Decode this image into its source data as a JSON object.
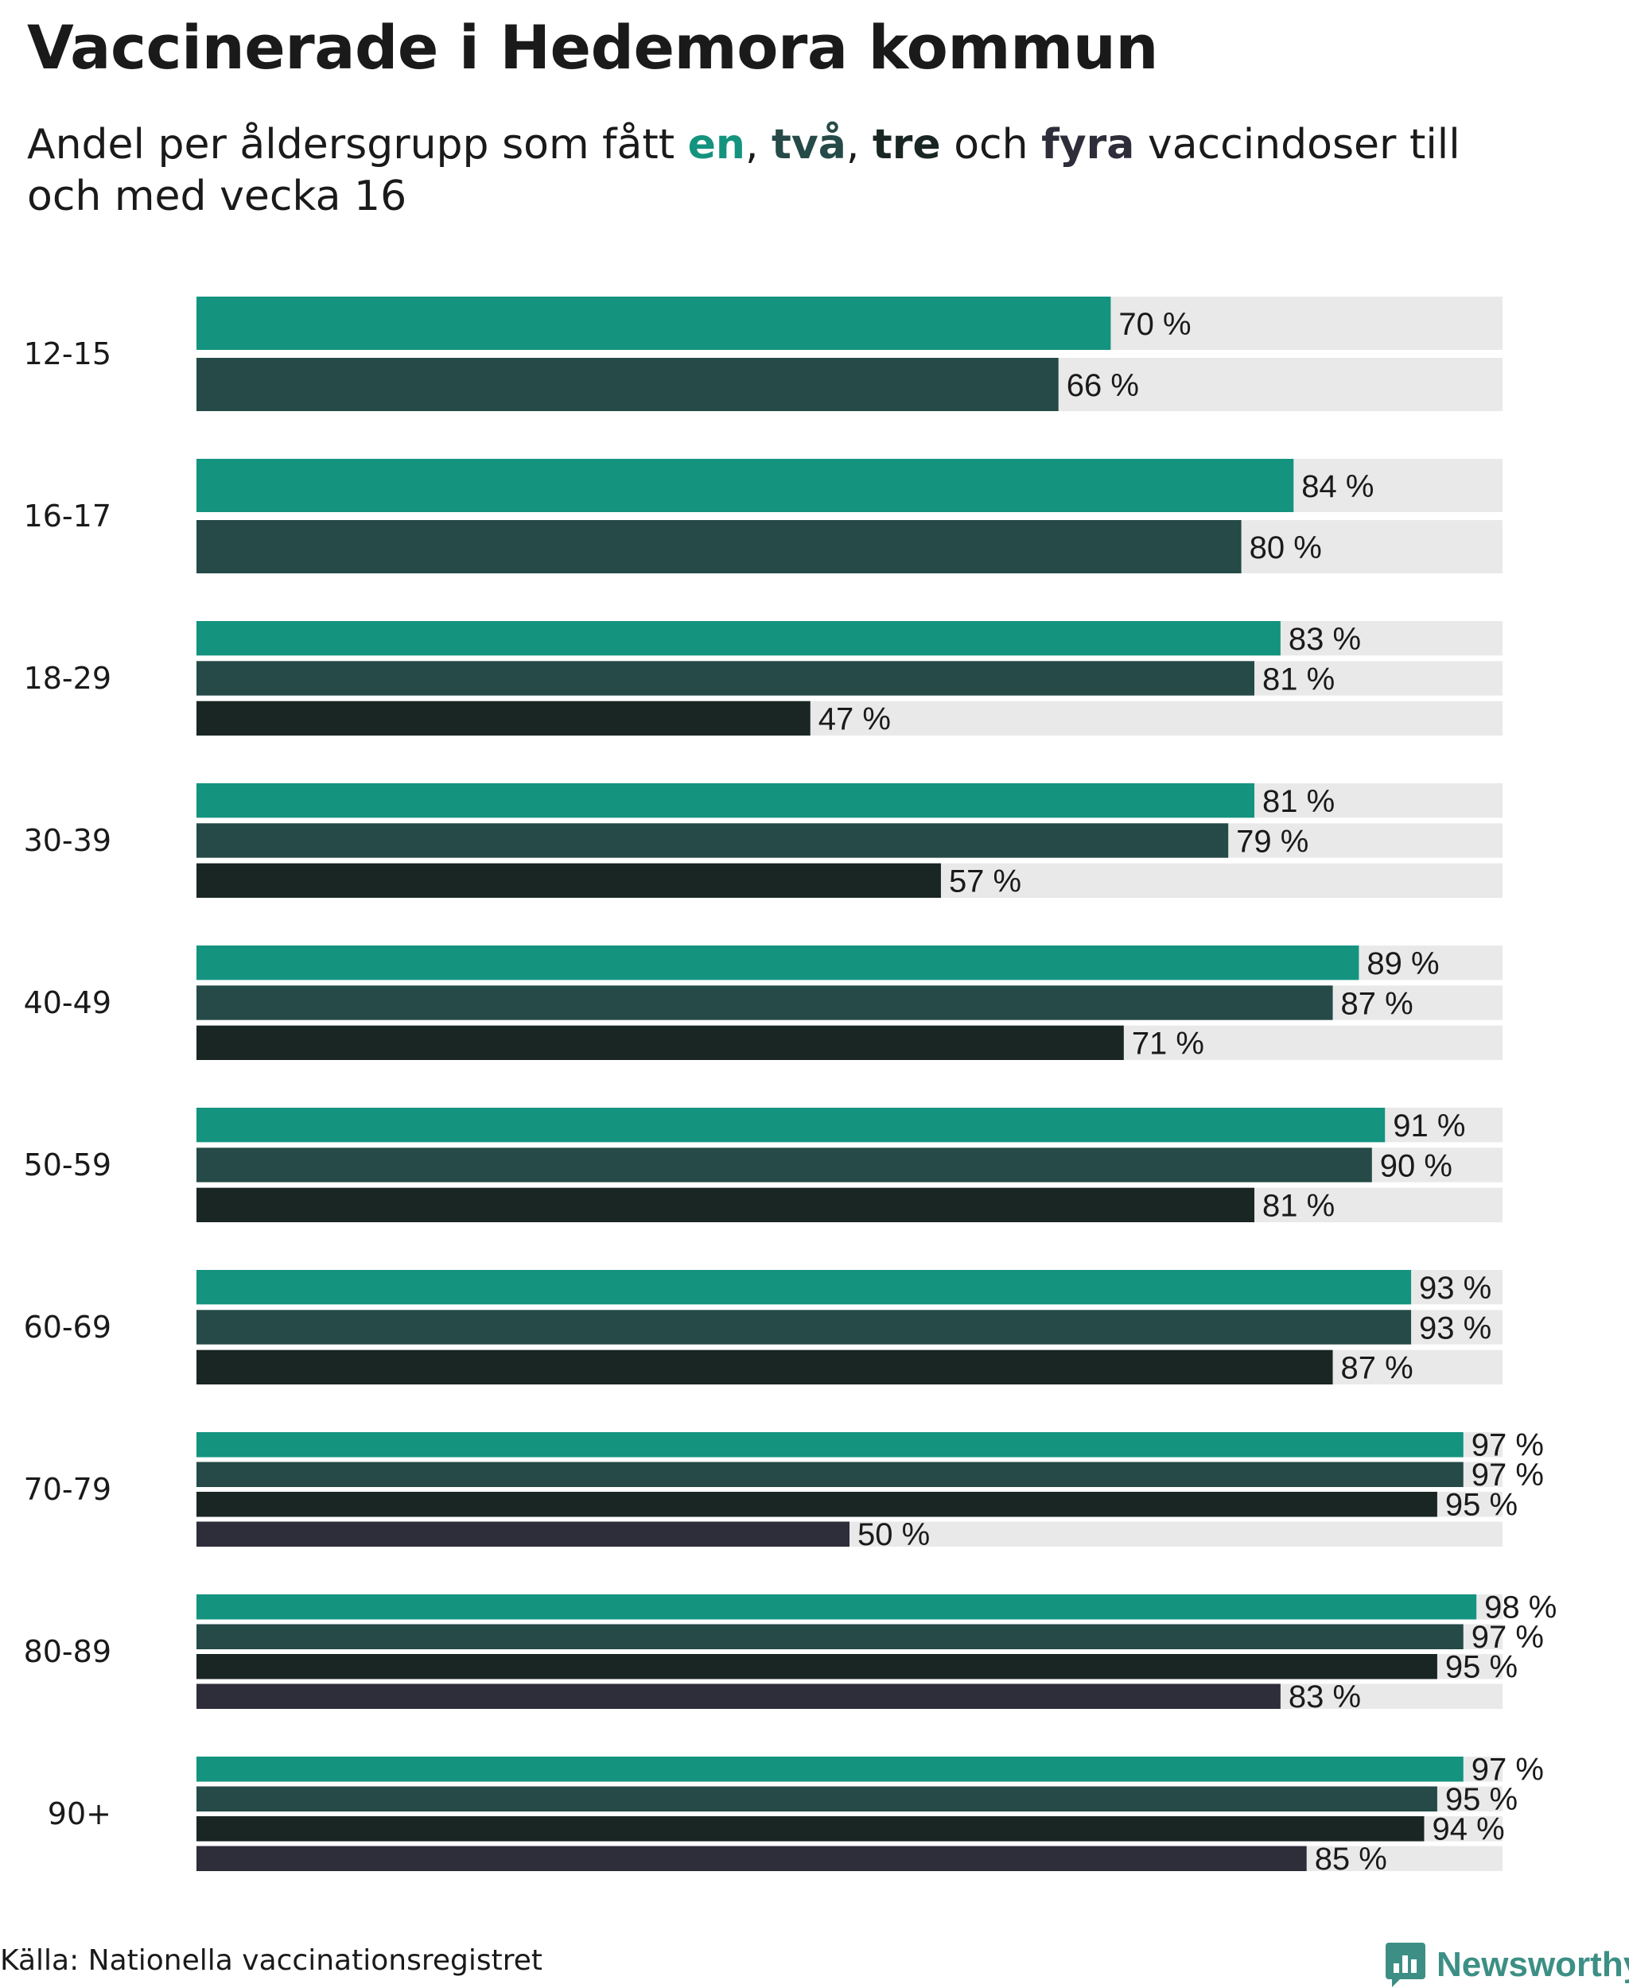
{
  "title": "Vaccinerade i Hedemora kommun",
  "subtitle": {
    "part1": "Andel per åldersgrupp som fått ",
    "w1": "en",
    "sep1": ", ",
    "w2": "två",
    "sep2": ", ",
    "w3": "tre",
    "mid": " och ",
    "w4": "fyra",
    "part2": " vaccindoser till och med vecka 16"
  },
  "colors": {
    "dose1": "#14937f",
    "dose2": "#254a47",
    "dose3": "#192624",
    "dose4": "#2e2d3a",
    "track": "#e9e9e9"
  },
  "chart_data": {
    "type": "bar",
    "orientation": "horizontal",
    "categories": [
      "12-15",
      "16-17",
      "18-29",
      "30-39",
      "40-49",
      "50-59",
      "60-69",
      "70-79",
      "80-89",
      "90+"
    ],
    "series": [
      {
        "name": "en",
        "values": [
          70,
          84,
          83,
          81,
          89,
          91,
          93,
          97,
          98,
          97
        ]
      },
      {
        "name": "två",
        "values": [
          66,
          80,
          81,
          79,
          87,
          90,
          93,
          97,
          97,
          95
        ]
      },
      {
        "name": "tre",
        "values": [
          null,
          null,
          47,
          57,
          71,
          81,
          87,
          95,
          95,
          94
        ]
      },
      {
        "name": "fyra",
        "values": [
          null,
          null,
          null,
          null,
          null,
          null,
          null,
          50,
          83,
          85
        ]
      }
    ],
    "value_suffix": " %",
    "xlim": [
      0,
      100
    ],
    "grid": false,
    "legend": "none"
  },
  "source": "Källa: Nationella vaccinationsregistret",
  "brand": {
    "name": "Newsworthy",
    "icon": "newsworthy-logo-icon"
  }
}
